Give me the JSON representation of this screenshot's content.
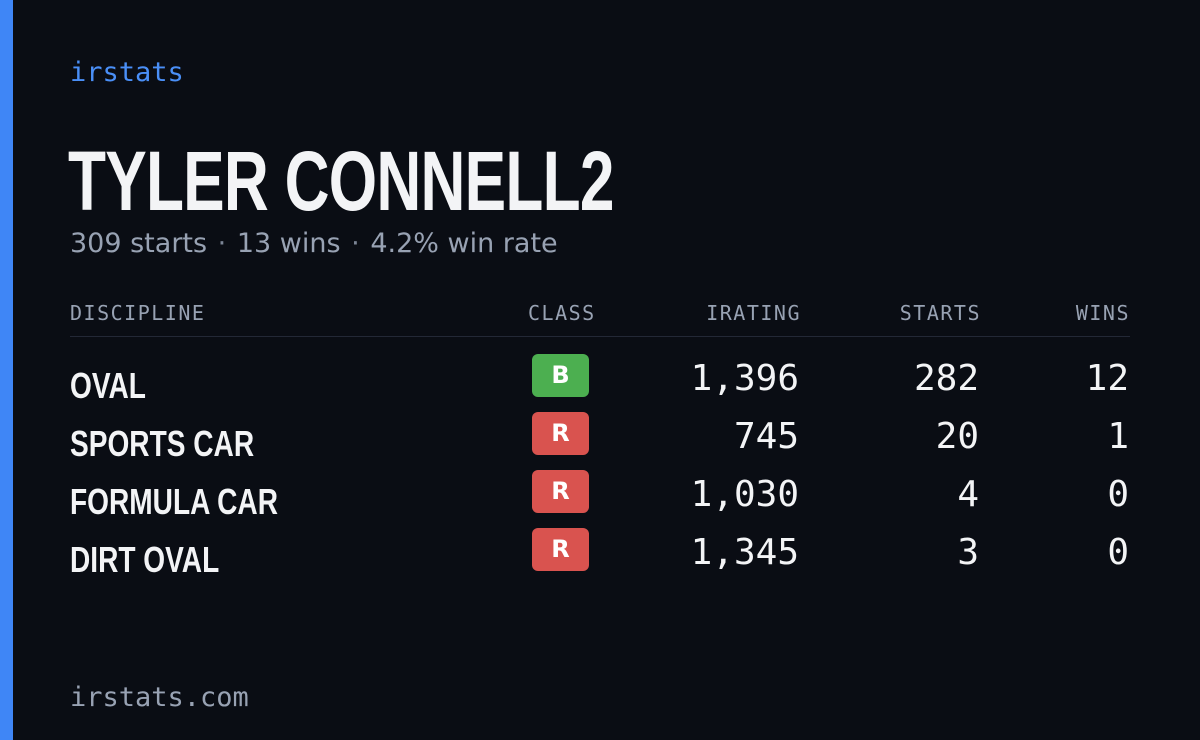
{
  "brand": "irstats",
  "driver": {
    "name": "TYLER CONNELL2"
  },
  "summary": {
    "starts": "309 starts",
    "wins": "13 wins",
    "win_rate": "4.2% win rate",
    "separator": "·"
  },
  "table": {
    "headers": {
      "discipline": "DISCIPLINE",
      "class": "CLASS",
      "irating": "IRATING",
      "starts": "STARTS",
      "wins": "WINS"
    },
    "rows": [
      {
        "discipline": "OVAL",
        "class": "B",
        "class_color": "#4caf50",
        "irating": "1,396",
        "starts": "282",
        "wins": "12"
      },
      {
        "discipline": "SPORTS CAR",
        "class": "R",
        "class_color": "#d9534f",
        "irating": "745",
        "starts": "20",
        "wins": "1"
      },
      {
        "discipline": "FORMULA CAR",
        "class": "R",
        "class_color": "#d9534f",
        "irating": "1,030",
        "starts": "4",
        "wins": "0"
      },
      {
        "discipline": "DIRT OVAL",
        "class": "R",
        "class_color": "#d9534f",
        "irating": "1,345",
        "starts": "3",
        "wins": "0"
      }
    ]
  },
  "footer": {
    "site": "irstats.com"
  },
  "colors": {
    "background": "#0a0d14",
    "accent": "#3f86f6"
  }
}
